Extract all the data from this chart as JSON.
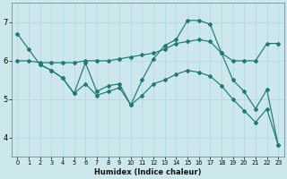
{
  "xlabel": "Humidex (Indice chaleur)",
  "xlim": [
    -0.5,
    23.5
  ],
  "ylim": [
    3.5,
    7.5
  ],
  "yticks": [
    4,
    5,
    6,
    7
  ],
  "xtick_labels": [
    "0",
    "1",
    "2",
    "3",
    "4",
    "5",
    "6",
    "7",
    "8",
    "9",
    "10",
    "11",
    "12",
    "13",
    "14",
    "15",
    "16",
    "17",
    "18",
    "19",
    "20",
    "21",
    "22",
    "23"
  ],
  "xtick_positions": [
    0,
    1,
    2,
    3,
    4,
    5,
    6,
    7,
    8,
    9,
    10,
    11,
    12,
    13,
    14,
    15,
    16,
    17,
    18,
    19,
    20,
    21,
    22,
    23
  ],
  "bg_color": "#cde8ed",
  "grid_color": "#b2d5dc",
  "line_color": "#1e7b6e",
  "line1_x": [
    0,
    1,
    2,
    3,
    4,
    5,
    6,
    7,
    8,
    9,
    10,
    11,
    12,
    13,
    14,
    15,
    16,
    17,
    18,
    19,
    20,
    21,
    22,
    23
  ],
  "line1_y": [
    6.7,
    6.3,
    5.9,
    5.75,
    5.55,
    5.15,
    5.95,
    5.2,
    5.35,
    5.4,
    4.85,
    5.5,
    6.05,
    6.4,
    6.55,
    7.05,
    7.05,
    6.95,
    6.2,
    5.5,
    5.2,
    4.75,
    5.25,
    3.8
  ],
  "line2_x": [
    0,
    1,
    2,
    3,
    4,
    5,
    6,
    7,
    8,
    9,
    10,
    11,
    12,
    13,
    14,
    15,
    16,
    17,
    18,
    19,
    20,
    21,
    22,
    23
  ],
  "line2_y": [
    6.0,
    6.0,
    5.95,
    5.95,
    5.95,
    5.95,
    6.0,
    6.0,
    6.0,
    6.05,
    6.1,
    6.15,
    6.2,
    6.3,
    6.45,
    6.5,
    6.55,
    6.5,
    6.2,
    6.0,
    6.0,
    6.0,
    6.45,
    6.45
  ],
  "line3_x": [
    2,
    3,
    4,
    5,
    6,
    7,
    8,
    9,
    10,
    11,
    12,
    13,
    14,
    15,
    16,
    17,
    18,
    19,
    20,
    21,
    22,
    23
  ],
  "line3_y": [
    5.9,
    5.75,
    5.55,
    5.15,
    5.4,
    5.1,
    5.2,
    5.3,
    4.85,
    5.1,
    5.4,
    5.5,
    5.65,
    5.75,
    5.7,
    5.6,
    5.35,
    5.0,
    4.7,
    4.4,
    4.75,
    3.8
  ]
}
